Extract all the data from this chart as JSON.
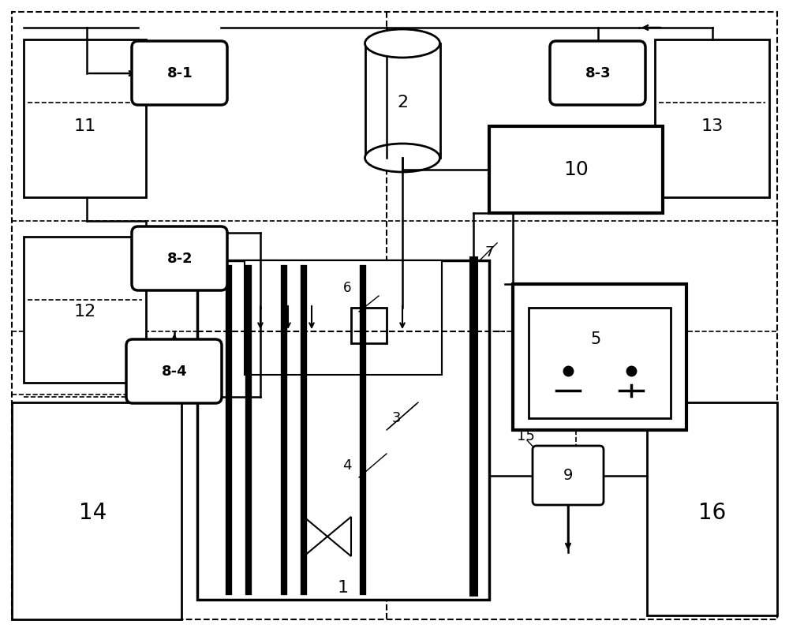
{
  "bg_color": "#ffffff",
  "fig_width": 10.0,
  "fig_height": 8.01
}
